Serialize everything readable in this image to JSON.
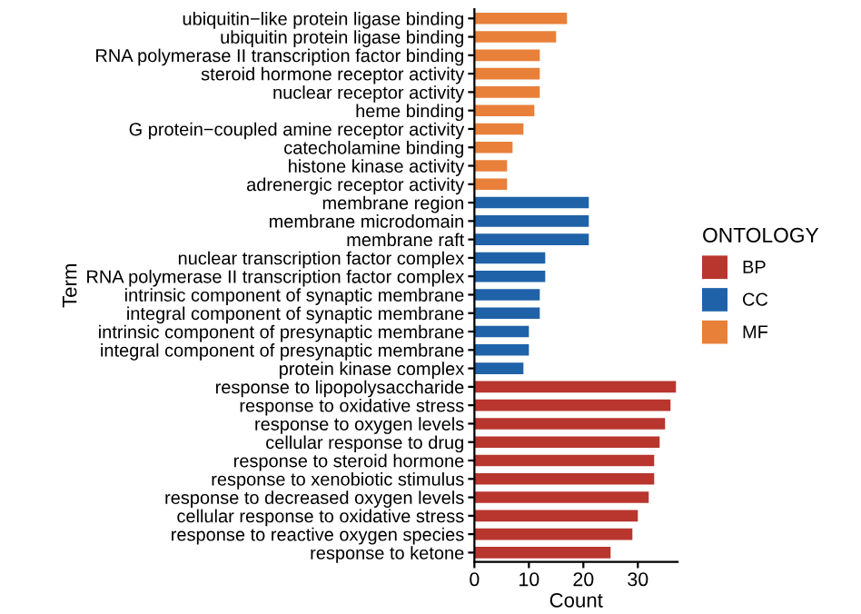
{
  "chart_data": {
    "type": "bar",
    "orientation": "horizontal",
    "xlabel": "Count",
    "ylabel": "Term",
    "legend_title": "ONTOLOGY",
    "legend": "right",
    "grid": false,
    "categories": [
      "ubiquitin−like protein ligase binding",
      "ubiquitin protein ligase binding",
      "RNA polymerase II transcription factor binding",
      "steroid hormone receptor activity",
      "nuclear receptor activity",
      "heme binding",
      "G protein−coupled amine receptor activity",
      "catecholamine binding",
      "histone kinase activity",
      "adrenergic receptor activity",
      "membrane region",
      "membrane microdomain",
      "membrane raft",
      "nuclear transcription factor complex",
      "RNA polymerase II transcription factor complex",
      "intrinsic component of synaptic membrane",
      "integral component of synaptic membrane",
      "intrinsic component of presynaptic membrane",
      "integral component of presynaptic membrane",
      "protein kinase complex",
      "response to lipopolysaccharide",
      "response to oxidative stress",
      "response to oxygen levels",
      "cellular response to drug",
      "response to steroid hormone",
      "response to xenobiotic stimulus",
      "response to decreased oxygen levels",
      "cellular response to oxidative stress",
      "response to reactive oxygen species",
      "response to ketone"
    ],
    "series": [
      {
        "name": "BP",
        "color": "#b8362e",
        "values": [
          null,
          null,
          null,
          null,
          null,
          null,
          null,
          null,
          null,
          null,
          null,
          null,
          null,
          null,
          null,
          null,
          null,
          null,
          null,
          null,
          37,
          36,
          35,
          34,
          33,
          33,
          32,
          30,
          29,
          25
        ]
      },
      {
        "name": "CC",
        "color": "#1f62a8",
        "values": [
          null,
          null,
          null,
          null,
          null,
          null,
          null,
          null,
          null,
          null,
          21,
          21,
          21,
          13,
          13,
          12,
          12,
          10,
          10,
          9,
          null,
          null,
          null,
          null,
          null,
          null,
          null,
          null,
          null,
          null
        ]
      },
      {
        "name": "MF",
        "color": "#e8803a",
        "values": [
          17,
          15,
          12,
          12,
          12,
          11,
          9,
          7,
          6,
          6,
          null,
          null,
          null,
          null,
          null,
          null,
          null,
          null,
          null,
          null,
          null,
          null,
          null,
          null,
          null,
          null,
          null,
          null,
          null,
          null
        ]
      }
    ],
    "xlim": [
      0,
      37.3
    ],
    "xticks": [
      0,
      10,
      20,
      30
    ]
  }
}
